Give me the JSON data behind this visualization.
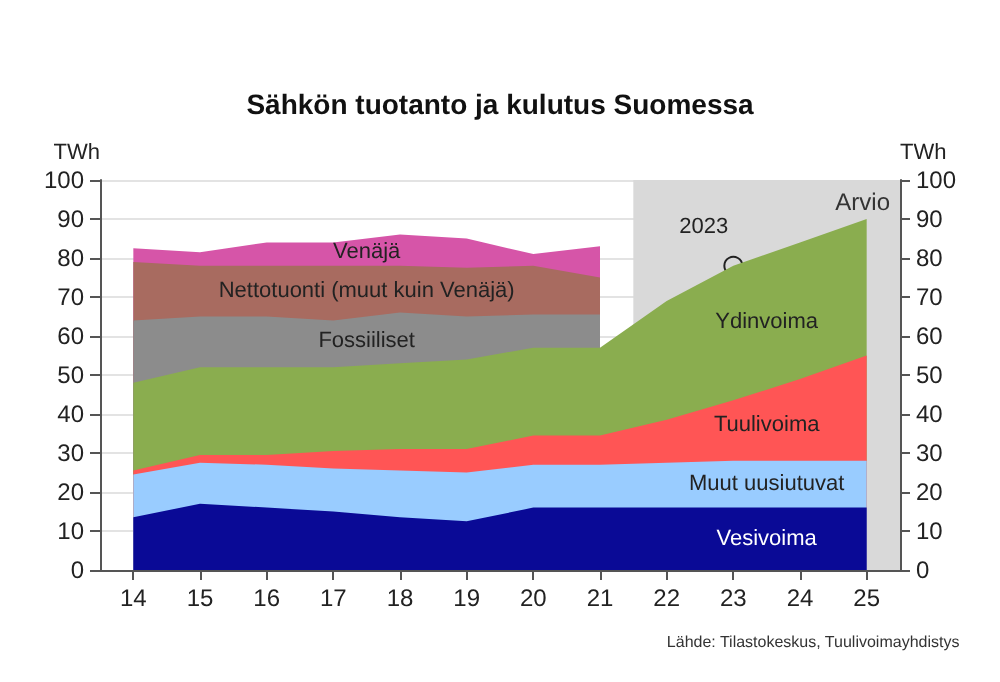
{
  "chart_data": {
    "type": "area",
    "title": "Sähkön tuotanto ja kulutus Suomessa",
    "ylabel": "TWh",
    "y2label": "TWh",
    "stacked": true,
    "grid": "y",
    "x": [
      14,
      15,
      16,
      17,
      18,
      19,
      20,
      21,
      22,
      23,
      24,
      25
    ],
    "xlim": [
      13.5,
      25.5
    ],
    "xticks": [
      14,
      15,
      16,
      17,
      18,
      19,
      20,
      21,
      22,
      23,
      24,
      25
    ],
    "ylim": [
      0,
      100
    ],
    "yticks": [
      0,
      10,
      20,
      30,
      40,
      50,
      60,
      70,
      80,
      90,
      100
    ],
    "y2lim": [
      0,
      100
    ],
    "y2ticks": [
      0,
      10,
      20,
      30,
      40,
      50,
      60,
      70,
      80,
      90,
      100
    ],
    "series": [
      {
        "name": "Vesivoima",
        "color": "#0a0a96",
        "values": [
          13.5,
          17,
          16,
          15,
          13.5,
          12.5,
          16,
          16,
          16,
          16,
          16,
          16
        ]
      },
      {
        "name": "Muut uusiutuvat",
        "color": "#99ccff",
        "values": [
          11,
          10.5,
          11,
          11,
          12,
          12.5,
          11,
          11,
          11.5,
          12,
          12,
          12
        ]
      },
      {
        "name": "Tuulivoima",
        "color": "#ff5555",
        "values": [
          1,
          2,
          2.5,
          4.5,
          5.5,
          6,
          7.5,
          7.5,
          11,
          15.5,
          21,
          27
        ]
      },
      {
        "name": "Ydinvoima",
        "color": "#8aad4f",
        "values": [
          22.5,
          22.5,
          22.5,
          21.5,
          22,
          23,
          22.5,
          22.5,
          30.5,
          34.5,
          35,
          35
        ]
      },
      {
        "name": "Fossiiliset",
        "color": "#8c8c8c",
        "values": [
          16,
          13,
          13,
          12,
          13,
          11,
          8.5,
          8.5,
          null,
          null,
          null,
          null
        ]
      },
      {
        "name": "Nettotuonti (muut kuin Venäjä)",
        "color": "#a86b60",
        "values": [
          15,
          13,
          13,
          14,
          12,
          12.5,
          12.5,
          9.5,
          null,
          null,
          null,
          null
        ]
      },
      {
        "name": "Venäjä",
        "color": "#d655a8",
        "values": [
          3.5,
          3.5,
          6,
          6,
          8,
          7.5,
          3,
          8,
          null,
          null,
          null,
          null
        ]
      }
    ],
    "bands": [
      {
        "axis": "x",
        "from": 21.5,
        "to": 25.5,
        "label": "Arvio",
        "color": "#d9d9d9"
      }
    ],
    "annotations": [
      {
        "text": "2023",
        "x": 23,
        "y": 78
      },
      "Lähde: Tilastokeskus, Tuulivoimayhdistys"
    ]
  }
}
